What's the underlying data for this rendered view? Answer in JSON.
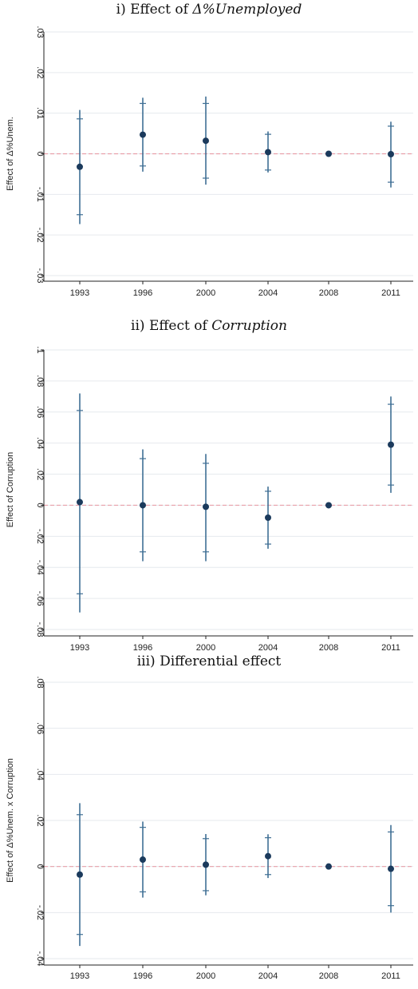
{
  "colors": {
    "point": "#1b3a5c",
    "ci": "#3f6f94",
    "zero_line": "#e8a0aa",
    "grid": "#e6eaee",
    "axis": "#222222"
  },
  "panels": [
    {
      "title_prefix": "i) Effect of ",
      "title_italic": "Δ%Unemployed"
    },
    {
      "title_prefix": "ii) Effect of ",
      "title_italic": "Corruption"
    },
    {
      "title_prefix": "iii) Differential effect",
      "title_italic": ""
    }
  ],
  "chart_data": [
    {
      "type": "scatter",
      "title": "i) Effect of Δ%Unemployed",
      "xlabel": "",
      "ylabel": "Effect of Δ%Unem.",
      "categories": [
        "1993",
        "1996",
        "2000",
        "2004",
        "2008",
        "2011"
      ],
      "ylim": [
        -0.03,
        0.03
      ],
      "yticks": [
        -0.03,
        -0.02,
        -0.01,
        0,
        0.01,
        0.02,
        0.03
      ],
      "ytick_labels": [
        "-.03",
        "-.02",
        "-.01",
        "0",
        ".01",
        ".02",
        ".03"
      ],
      "grid": true,
      "reference_line": 0,
      "points": [
        {
          "year": "1993",
          "estimate": -0.0032,
          "ci90": [
            -0.015,
            0.0086
          ],
          "ci95": [
            -0.0173,
            0.0108
          ]
        },
        {
          "year": "1996",
          "estimate": 0.0047,
          "ci90": [
            -0.003,
            0.0124
          ],
          "ci95": [
            -0.0044,
            0.0138
          ]
        },
        {
          "year": "2000",
          "estimate": 0.0032,
          "ci90": [
            -0.006,
            0.0124
          ],
          "ci95": [
            -0.0076,
            0.0141
          ]
        },
        {
          "year": "2004",
          "estimate": 0.0004,
          "ci90": [
            -0.004,
            0.0048
          ],
          "ci95": [
            -0.0046,
            0.0055
          ]
        },
        {
          "year": "2008",
          "estimate": 0.0,
          "ci90": [
            0.0,
            0.0
          ],
          "ci95": [
            0.0,
            0.0
          ]
        },
        {
          "year": "2011",
          "estimate": -0.0001,
          "ci90": [
            -0.007,
            0.0068
          ],
          "ci95": [
            -0.0083,
            0.0079
          ]
        }
      ]
    },
    {
      "type": "scatter",
      "title": "ii) Effect of Corruption",
      "xlabel": "",
      "ylabel": "Effect of Corruption",
      "categories": [
        "1993",
        "1996",
        "2000",
        "2004",
        "2008",
        "2011"
      ],
      "ylim": [
        -0.08,
        0.1
      ],
      "yticks": [
        -0.08,
        -0.06,
        -0.04,
        -0.02,
        0,
        0.02,
        0.04,
        0.06,
        0.08,
        0.1
      ],
      "ytick_labels": [
        "-.08",
        "-.06",
        "-.04",
        "-.02",
        "0",
        ".02",
        ".04",
        ".06",
        ".08",
        ".1"
      ],
      "grid": true,
      "reference_line": 0,
      "points": [
        {
          "year": "1993",
          "estimate": 0.002,
          "ci90": [
            -0.057,
            0.061
          ],
          "ci95": [
            -0.069,
            0.072
          ]
        },
        {
          "year": "1996",
          "estimate": 0.0,
          "ci90": [
            -0.03,
            0.03
          ],
          "ci95": [
            -0.036,
            0.036
          ]
        },
        {
          "year": "2000",
          "estimate": -0.001,
          "ci90": [
            -0.03,
            0.027
          ],
          "ci95": [
            -0.036,
            0.033
          ]
        },
        {
          "year": "2004",
          "estimate": -0.008,
          "ci90": [
            -0.025,
            0.009
          ],
          "ci95": [
            -0.028,
            0.012
          ]
        },
        {
          "year": "2008",
          "estimate": 0.0,
          "ci90": [
            0.0,
            0.0
          ],
          "ci95": [
            0.0,
            0.0
          ]
        },
        {
          "year": "2011",
          "estimate": 0.039,
          "ci90": [
            0.013,
            0.065
          ],
          "ci95": [
            0.008,
            0.07
          ]
        }
      ]
    },
    {
      "type": "scatter",
      "title": "iii) Differential effect",
      "xlabel": "",
      "ylabel": "Effect of Δ%Unem. x Corruption",
      "categories": [
        "1993",
        "1996",
        "2000",
        "2004",
        "2008",
        "2011"
      ],
      "ylim": [
        -0.04,
        0.08
      ],
      "yticks": [
        -0.04,
        -0.02,
        0,
        0.02,
        0.04,
        0.06,
        0.08
      ],
      "ytick_labels": [
        "-.04",
        "-.02",
        "0",
        ".02",
        ".04",
        ".06",
        ".08"
      ],
      "grid": true,
      "reference_line": 0,
      "points": [
        {
          "year": "1993",
          "estimate": -0.0035,
          "ci90": [
            -0.0295,
            0.0225
          ],
          "ci95": [
            -0.0345,
            0.0275
          ]
        },
        {
          "year": "1996",
          "estimate": 0.003,
          "ci90": [
            -0.011,
            0.017
          ],
          "ci95": [
            -0.0135,
            0.0195
          ]
        },
        {
          "year": "2000",
          "estimate": 0.0008,
          "ci90": [
            -0.0105,
            0.0121
          ],
          "ci95": [
            -0.0125,
            0.0141
          ]
        },
        {
          "year": "2004",
          "estimate": 0.0045,
          "ci90": [
            -0.0035,
            0.0125
          ],
          "ci95": [
            -0.005,
            0.014
          ]
        },
        {
          "year": "2008",
          "estimate": 0.0,
          "ci90": [
            0.0,
            0.0
          ],
          "ci95": [
            0.0,
            0.0
          ]
        },
        {
          "year": "2011",
          "estimate": -0.001,
          "ci90": [
            -0.017,
            0.015
          ],
          "ci95": [
            -0.02,
            0.018
          ]
        }
      ]
    }
  ]
}
